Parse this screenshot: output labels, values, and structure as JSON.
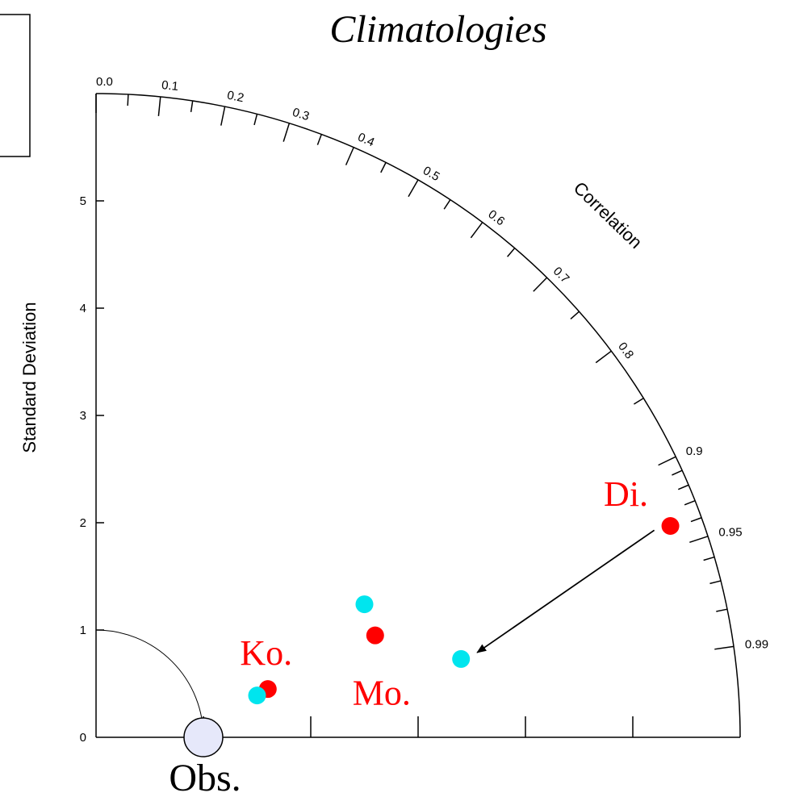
{
  "chart_data": {
    "type": "scatter",
    "subtype": "taylor-diagram",
    "title": "Climatologies",
    "ylabel": "Standard Deviation",
    "arc_label": "Correlation",
    "stddev_range": [
      0,
      6
    ],
    "stddev_ticks": [
      0,
      1,
      2,
      3,
      4,
      5
    ],
    "correlation_labels": [
      "0.0",
      "0.1",
      "0.2",
      "0.3",
      "0.4",
      "0.5",
      "0.6",
      "0.7",
      "0.8",
      "0.9",
      "0.95",
      "0.99"
    ],
    "correlation_label_values": [
      0.0,
      0.1,
      0.2,
      0.3,
      0.4,
      0.5,
      0.6,
      0.7,
      0.8,
      0.9,
      0.95,
      0.99
    ],
    "correlation_minor_ticks": [
      0.05,
      0.15,
      0.25,
      0.35,
      0.45,
      0.55,
      0.65,
      0.75,
      0.85,
      0.91,
      0.92,
      0.93,
      0.94,
      0.96,
      0.97,
      0.98
    ],
    "reference": {
      "label": "Obs.",
      "stddev": 1.0,
      "color": "#e6e8fa"
    },
    "series": [
      {
        "color": "#ff0000",
        "points": [
          {
            "label": "Ko.",
            "x": 1.6,
            "y": 0.45
          },
          {
            "label": "Mo.",
            "x": 2.6,
            "y": 0.95
          },
          {
            "label": "Di.",
            "x": 5.35,
            "y": 1.97
          }
        ]
      },
      {
        "color": "#00e5ee",
        "points": [
          {
            "x": 1.5,
            "y": 0.39
          },
          {
            "x": 2.5,
            "y": 1.24
          },
          {
            "x": 3.4,
            "y": 0.73
          }
        ]
      }
    ],
    "annotations": [
      {
        "type": "arrow",
        "from": [
          5.2,
          1.93
        ],
        "to": [
          3.55,
          0.79
        ]
      }
    ],
    "grid": false,
    "legend": "none"
  }
}
